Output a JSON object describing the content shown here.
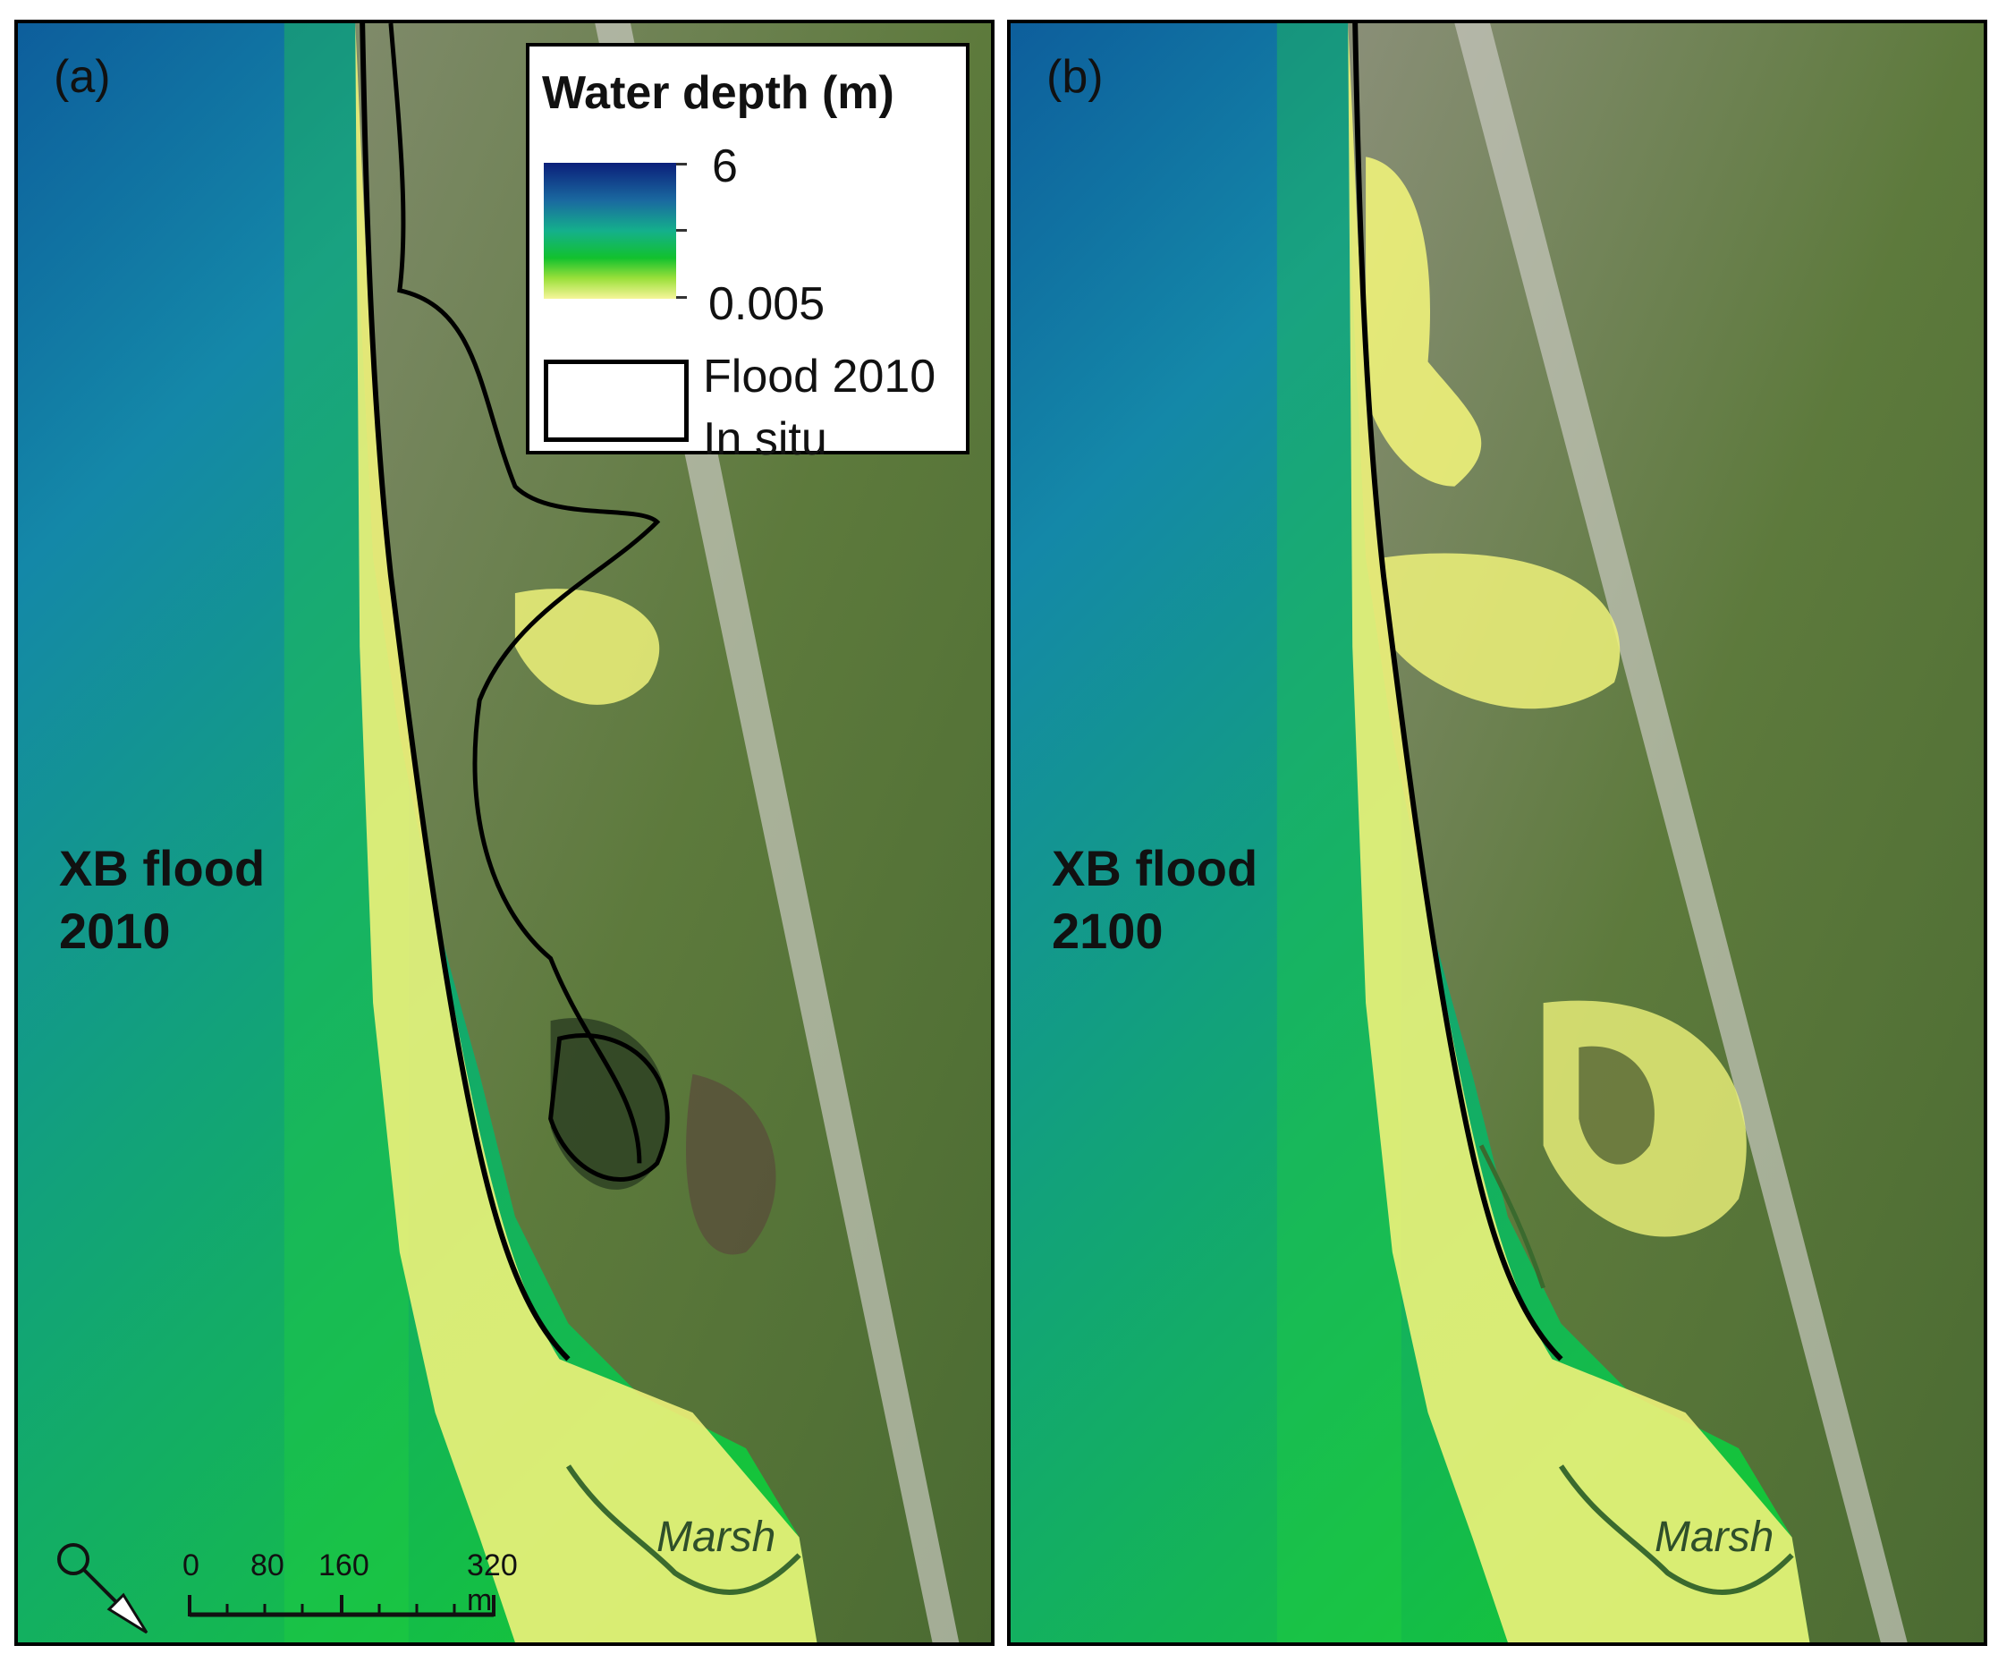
{
  "panels": [
    {
      "tag": "(a)",
      "title_line1": "XB flood",
      "title_line2": "2010",
      "marsh_label": "Marsh"
    },
    {
      "tag": "(b)",
      "title_line1": "XB flood",
      "title_line2": "2100",
      "marsh_label": "Marsh"
    }
  ],
  "legend": {
    "title": "Water depth (m)",
    "max_value": "6",
    "min_value": "0.005",
    "flood_line1": "Flood 2010",
    "flood_line2": "In situ"
  },
  "scale": {
    "labels": [
      "0",
      "80",
      "160",
      "320 m"
    ]
  },
  "colors": {
    "deep_water": "#0b1f7a",
    "mid_water": "#14a080",
    "shallow_water": "#12c12e",
    "very_shallow": "#f6f59a",
    "land": "#5f7a3e",
    "outline": "#000000",
    "marsh_line": "#2f4f2a"
  }
}
